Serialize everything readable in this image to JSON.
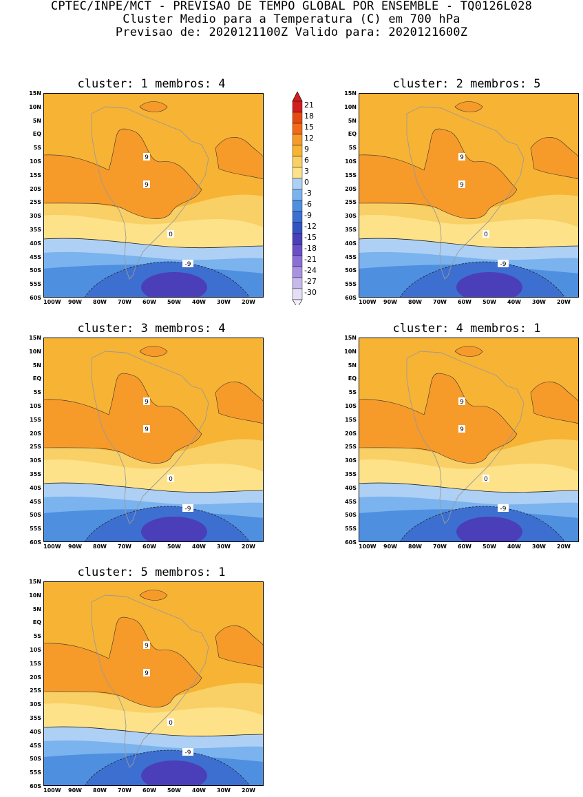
{
  "header": {
    "line1": "CPTEC/INPE/MCT - PREVISAO DE TEMPO GLOBAL POR ENSEMBLE - TQ0126L028",
    "line2": "Cluster Medio para a Temperatura (C) em 700 hPa",
    "line3": "Previsao de: 2020121100Z   Valido para: 2020121600Z"
  },
  "panels": [
    {
      "title": "cluster: 1  membros: 4"
    },
    {
      "title": "cluster: 2  membros: 5"
    },
    {
      "title": "cluster: 3  membros: 4"
    },
    {
      "title": "cluster: 4  membros: 1"
    },
    {
      "title": "cluster: 5  membros: 1"
    }
  ],
  "lat_ticks": [
    "15N",
    "10N",
    "5N",
    "EQ",
    "5S",
    "10S",
    "15S",
    "20S",
    "25S",
    "30S",
    "35S",
    "40S",
    "45S",
    "50S",
    "55S",
    "60S"
  ],
  "lon_ticks": [
    "100W",
    "90W",
    "80W",
    "70W",
    "60W",
    "50W",
    "40W",
    "30W",
    "20W"
  ],
  "colorbar": {
    "labels": [
      "21",
      "18",
      "15",
      "12",
      "9",
      "6",
      "3",
      "0",
      "-3",
      "-6",
      "-9",
      "-12",
      "-15",
      "-18",
      "-21",
      "-24",
      "-27",
      "-30"
    ],
    "colors": [
      "#d11e1e",
      "#e64a12",
      "#f06a1a",
      "#f69a2a",
      "#f7b333",
      "#f9d065",
      "#fde28a",
      "#aed0f5",
      "#7ab3ee",
      "#4f8fe0",
      "#3d6fd0",
      "#3554c2",
      "#4a3fb8",
      "#6a4fc8",
      "#8a6fd6",
      "#a992e1",
      "#c8b9ec",
      "#e6def6"
    ]
  },
  "contour_labels": {
    "nine": "9",
    "zero": "0",
    "minus_nine": "-9"
  }
}
